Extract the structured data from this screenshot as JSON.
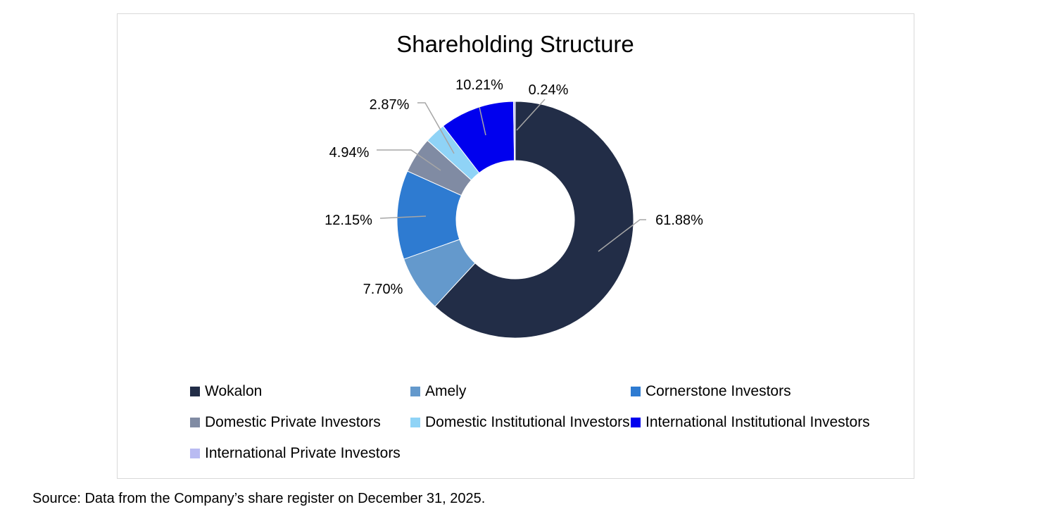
{
  "chart_data": {
    "type": "pie",
    "style": "donut",
    "title": "Shareholding Structure",
    "series": [
      {
        "name": "Wokalon",
        "value": 61.88,
        "label": "61.88%",
        "color": "#222d47"
      },
      {
        "name": "Amely",
        "value": 7.7,
        "label": "7.70%",
        "color": "#6499cc"
      },
      {
        "name": "Cornerstone Investors",
        "value": 12.15,
        "label": "12.15%",
        "color": "#2e7bd1"
      },
      {
        "name": "Domestic Private Investors",
        "value": 4.94,
        "label": "4.94%",
        "color": "#808ba3"
      },
      {
        "name": "Domestic Institutional Investors",
        "value": 2.87,
        "label": "2.87%",
        "color": "#8fd3f6"
      },
      {
        "name": "International Institutional Investors",
        "value": 10.21,
        "label": "10.21%",
        "color": "#0000ee"
      },
      {
        "name": "International Private Investors",
        "value": 0.24,
        "label": "0.24%",
        "color": "#b9bbf2"
      }
    ],
    "legend_position": "bottom"
  },
  "source_note": "Source: Data from the Company’s share register on December 31, 2025."
}
